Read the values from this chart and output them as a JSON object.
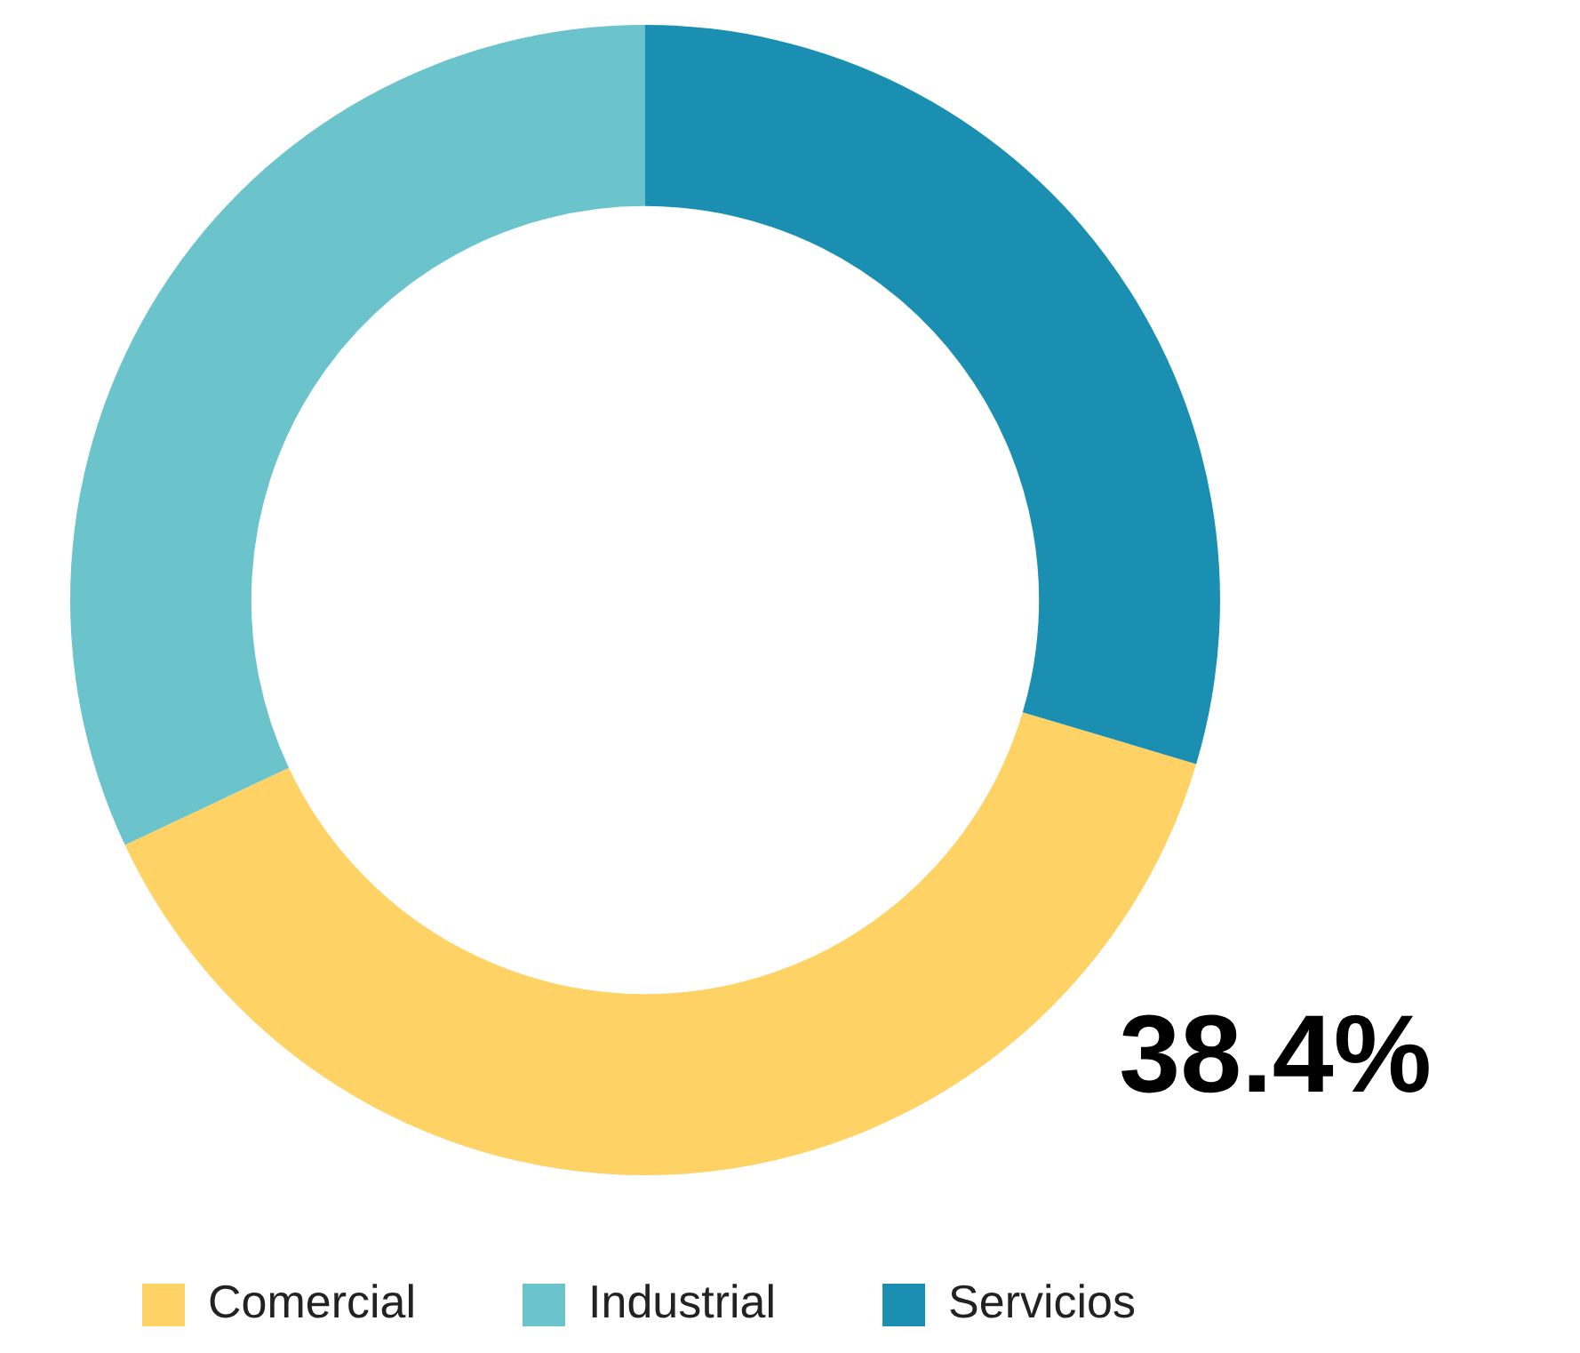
{
  "chart_data": {
    "type": "donut",
    "categories": [
      "Comercial",
      "Industrial",
      "Servicios"
    ],
    "values": [
      38.4,
      32.0,
      29.6
    ],
    "colors": [
      "#fed264",
      "#6bc3cb",
      "#1a8fb1"
    ],
    "value_labels": [
      "38.4%",
      null,
      null
    ],
    "legend": "bottom"
  }
}
